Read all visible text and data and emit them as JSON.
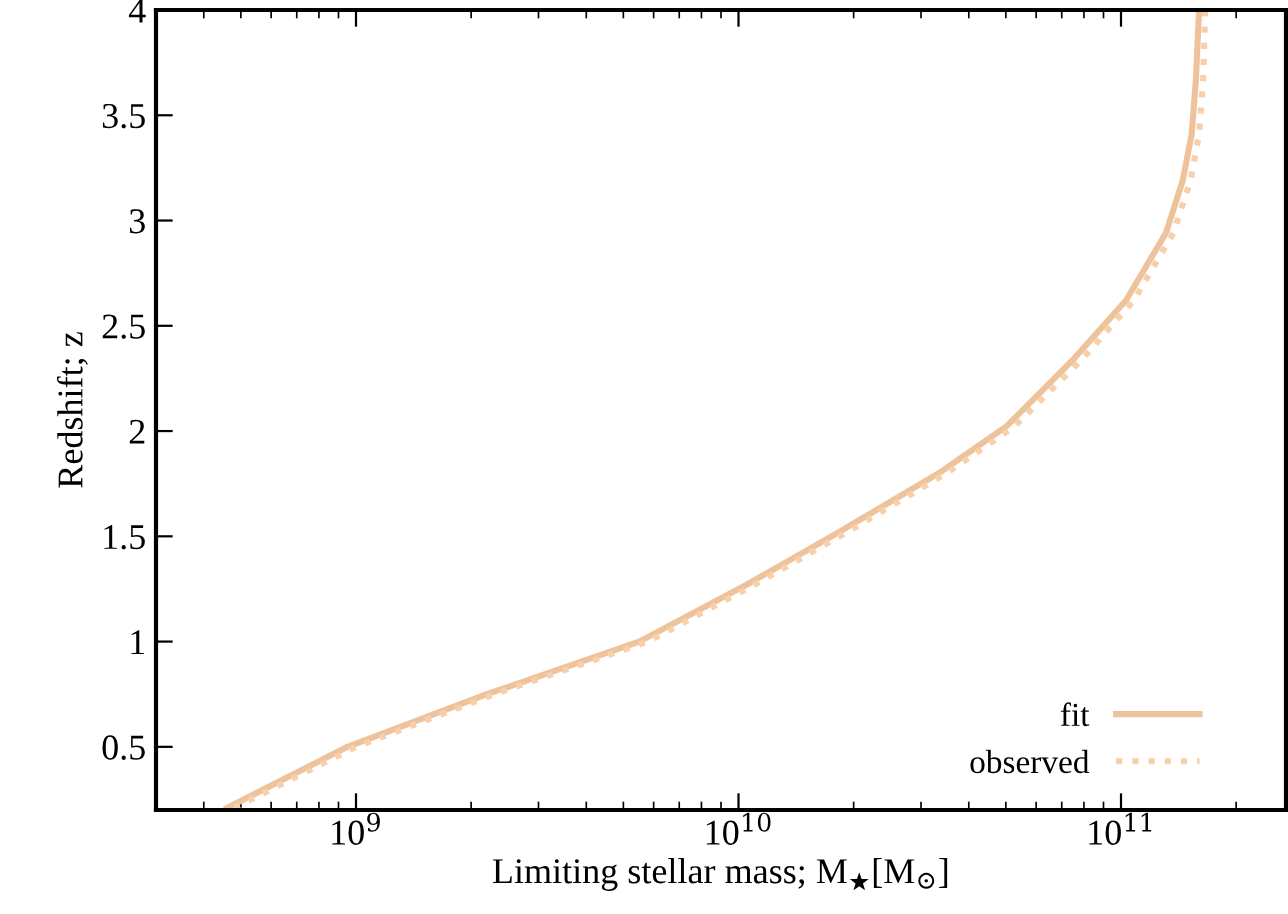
{
  "chart_data": {
    "type": "line",
    "xlabel": "Limiting stellar mass; M$_{★}$[M$_{⊙}$]",
    "ylabel": "Redshift; z",
    "log": "x",
    "xlim": [
      300000000.0,
      270000000000.0
    ],
    "ylim": [
      0.2,
      4
    ],
    "xticks": [
      {
        "value": 1000000000.0,
        "label": "10$^{9}$"
      },
      {
        "value": 10000000000.0,
        "label": "10$^{10}$"
      },
      {
        "value": 100000000000.0,
        "label": "10$^{11}$"
      }
    ],
    "yticks": [
      0.5,
      1,
      1.5,
      2,
      2.5,
      3,
      3.5,
      4
    ],
    "legend": "bottom right",
    "grid": false,
    "series": [
      {
        "name": "fit",
        "color": "#eec39c",
        "line_style": "solid",
        "x": [
          460000000.0,
          950000000.0,
          2200000000.0,
          5500000000.0,
          10500000000.0,
          18300000000.0,
          33400000000.0,
          50000000000.0,
          75000000000.0,
          103000000000.0,
          131000000000.0,
          145000000000.0,
          153000000000.0,
          157000000000.0,
          160000000000.0
        ],
        "values": [
          0.21,
          0.5,
          0.75,
          1,
          1.27,
          1.52,
          1.8,
          2.02,
          2.34,
          2.62,
          2.94,
          3.19,
          3.41,
          3.67,
          4
        ]
      },
      {
        "name": "observed",
        "color": "#f7cfaa",
        "line_style": "dotted",
        "x": [
          480000000.0,
          1000000000.0,
          2300000000.0,
          5800000000.0,
          11000000000.0,
          19200000000.0,
          35000000000.0,
          52500000000.0,
          79000000000.0,
          108000000000.0,
          137000000000.0,
          152000000000.0,
          160000000000.0,
          164000000000.0,
          166000000000.0
        ],
        "values": [
          0.21,
          0.5,
          0.75,
          1,
          1.27,
          1.52,
          1.8,
          2.02,
          2.34,
          2.62,
          2.94,
          3.19,
          3.41,
          3.67,
          4
        ]
      }
    ]
  }
}
